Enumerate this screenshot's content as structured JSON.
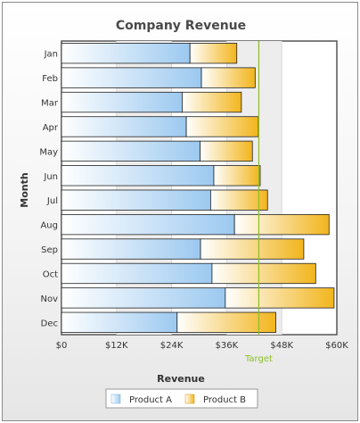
{
  "chart_data": {
    "type": "bar",
    "orientation": "horizontal",
    "stacked": true,
    "title": "Company Revenue",
    "xlabel": "Revenue",
    "ylabel": "Month",
    "categories": [
      "Jan",
      "Feb",
      "Mar",
      "Apr",
      "May",
      "Jun",
      "Jul",
      "Aug",
      "Sep",
      "Oct",
      "Nov",
      "Dec"
    ],
    "series": [
      {
        "name": "Product A",
        "color": "#9cc9f0",
        "values": [
          28000,
          30500,
          26300,
          27200,
          30200,
          33200,
          32500,
          37700,
          30300,
          32800,
          35700,
          25200
        ]
      },
      {
        "name": "Product B",
        "color": "#f2b51c",
        "values": [
          10200,
          11700,
          12900,
          15700,
          11400,
          10100,
          12400,
          20600,
          22500,
          22600,
          23700,
          21500
        ]
      }
    ],
    "xlim": [
      0,
      60000
    ],
    "xticks": [
      "$0",
      "$12K",
      "$24K",
      "$36K",
      "$48K",
      "$60K"
    ],
    "target": {
      "label": "Target",
      "value": 43000,
      "color": "#8cbf26"
    },
    "grid": true,
    "legend_position": "bottom"
  }
}
